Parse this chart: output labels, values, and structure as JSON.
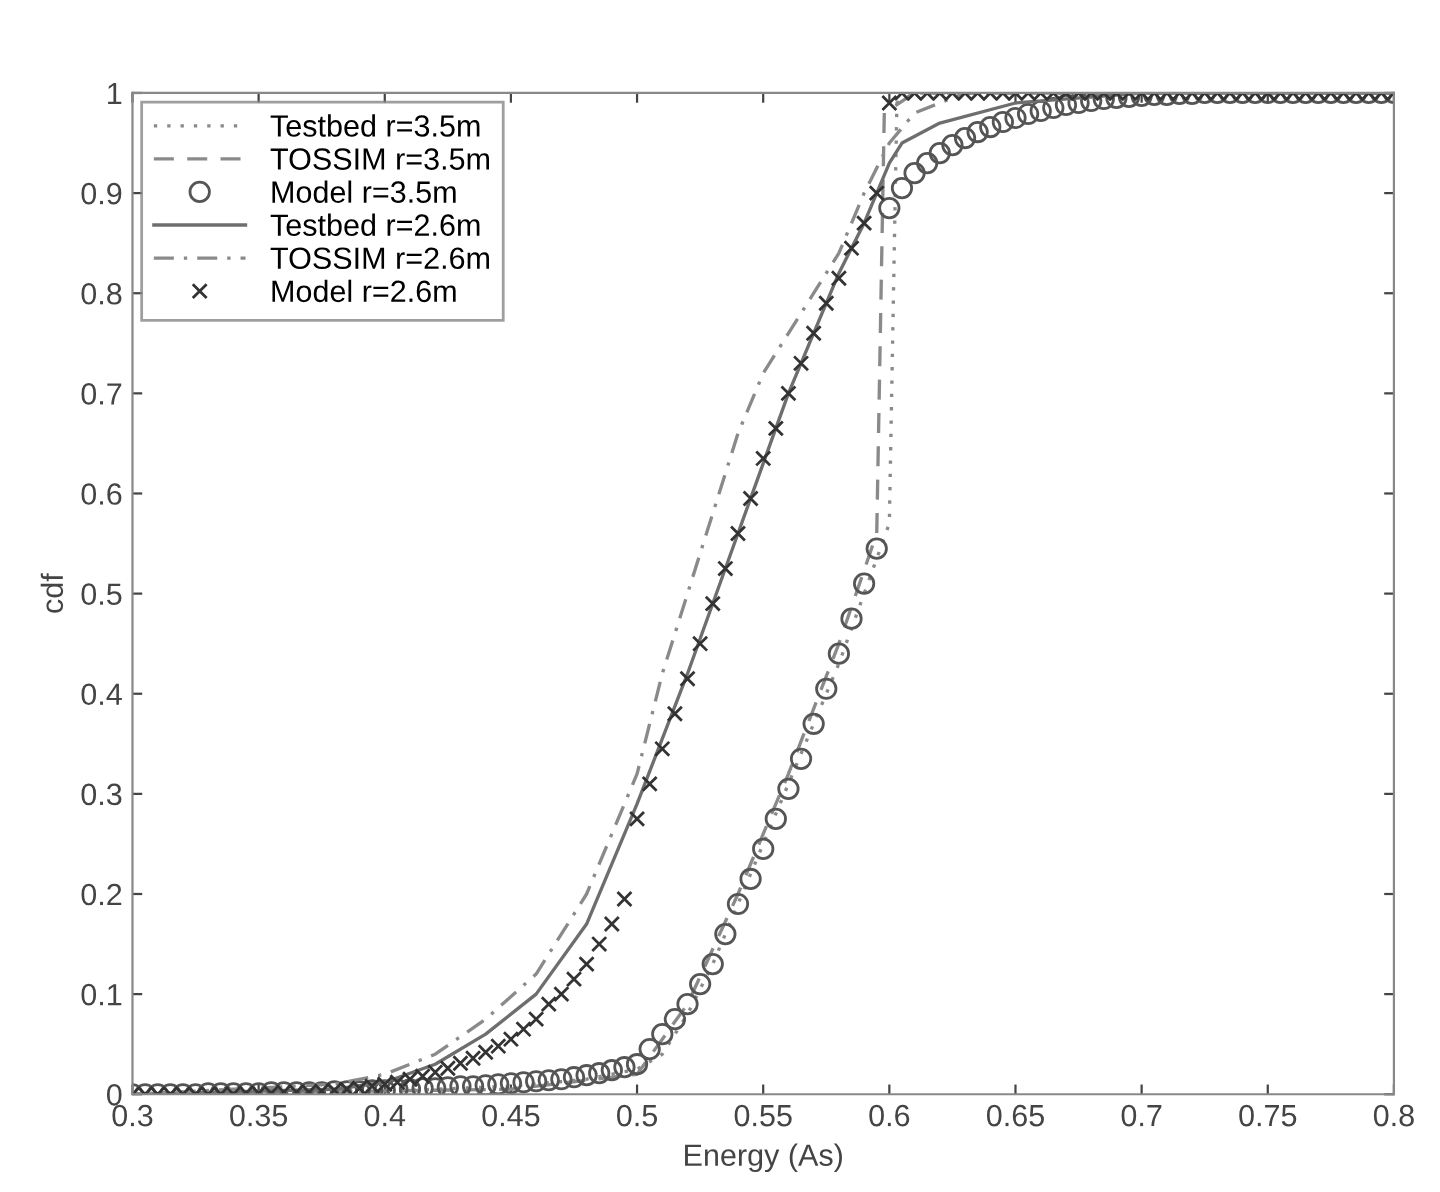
{
  "chart_data": {
    "type": "line",
    "xlabel": "Energy (As)",
    "ylabel": "cdf",
    "xlim": [
      0.3,
      0.8
    ],
    "ylim": [
      0,
      1
    ],
    "xticks": [
      0.3,
      0.35,
      0.4,
      0.45,
      0.5,
      0.55,
      0.6,
      0.65,
      0.7,
      0.75,
      0.8
    ],
    "yticks": [
      0,
      0.1,
      0.2,
      0.3,
      0.4,
      0.5,
      0.6,
      0.7,
      0.8,
      0.9,
      1
    ],
    "grid": false,
    "legend": "top left",
    "series": [
      {
        "name": "Testbed r=3.5m",
        "line_style": "dotted",
        "marker": "none",
        "color": "#8a8a8a",
        "x": [
          0.3,
          0.4,
          0.45,
          0.48,
          0.5,
          0.51,
          0.52,
          0.53,
          0.54,
          0.55,
          0.56,
          0.57,
          0.58,
          0.59,
          0.6,
          0.603,
          0.61,
          0.8
        ],
        "values": [
          0,
          0.003,
          0.008,
          0.015,
          0.025,
          0.04,
          0.08,
          0.13,
          0.19,
          0.25,
          0.31,
          0.37,
          0.43,
          0.5,
          0.57,
          0.99,
          1,
          1
        ]
      },
      {
        "name": "TOSSIM r=3.5m",
        "line_style": "dashed",
        "marker": "none",
        "color": "#8a8a8a",
        "x": [
          0.3,
          0.45,
          0.5,
          0.52,
          0.54,
          0.56,
          0.58,
          0.595,
          0.598,
          0.61,
          0.8
        ],
        "values": [
          0,
          0.005,
          0.02,
          0.09,
          0.2,
          0.32,
          0.45,
          0.56,
          0.98,
          1,
          1
        ]
      },
      {
        "name": "Model r=3.5m",
        "type": "scatter",
        "marker": "circle",
        "color": "#555555",
        "x": [
          0.3,
          0.305,
          0.31,
          0.315,
          0.32,
          0.325,
          0.33,
          0.335,
          0.34,
          0.345,
          0.35,
          0.355,
          0.36,
          0.365,
          0.37,
          0.375,
          0.38,
          0.385,
          0.39,
          0.395,
          0.4,
          0.405,
          0.41,
          0.415,
          0.42,
          0.425,
          0.43,
          0.435,
          0.44,
          0.445,
          0.45,
          0.455,
          0.46,
          0.465,
          0.47,
          0.475,
          0.48,
          0.485,
          0.49,
          0.495,
          0.5,
          0.505,
          0.51,
          0.515,
          0.52,
          0.525,
          0.53,
          0.535,
          0.54,
          0.545,
          0.55,
          0.555,
          0.56,
          0.565,
          0.57,
          0.575,
          0.58,
          0.585,
          0.59,
          0.595,
          0.6,
          0.605,
          0.61,
          0.615,
          0.62,
          0.625,
          0.63,
          0.635,
          0.64,
          0.645,
          0.65,
          0.655,
          0.66,
          0.665,
          0.67,
          0.675,
          0.68,
          0.685,
          0.69,
          0.695,
          0.7,
          0.705,
          0.71,
          0.715,
          0.72,
          0.725,
          0.73,
          0.735,
          0.74,
          0.745,
          0.75,
          0.755,
          0.76,
          0.765,
          0.77,
          0.775,
          0.78,
          0.785,
          0.79,
          0.795,
          0.8
        ],
        "values": [
          0,
          0,
          0,
          0,
          0,
          0,
          0.001,
          0.001,
          0.001,
          0.001,
          0.001,
          0.002,
          0.002,
          0.002,
          0.002,
          0.002,
          0.003,
          0.003,
          0.003,
          0.004,
          0.004,
          0.005,
          0.005,
          0.006,
          0.006,
          0.007,
          0.008,
          0.008,
          0.009,
          0.01,
          0.011,
          0.012,
          0.013,
          0.014,
          0.015,
          0.017,
          0.019,
          0.021,
          0.024,
          0.027,
          0.03,
          0.045,
          0.06,
          0.075,
          0.09,
          0.11,
          0.13,
          0.16,
          0.19,
          0.215,
          0.245,
          0.275,
          0.305,
          0.335,
          0.37,
          0.405,
          0.44,
          0.475,
          0.51,
          0.545,
          0.885,
          0.905,
          0.92,
          0.93,
          0.94,
          0.948,
          0.955,
          0.961,
          0.966,
          0.971,
          0.975,
          0.979,
          0.982,
          0.985,
          0.988,
          0.99,
          0.992,
          0.994,
          0.995,
          0.996,
          0.997,
          0.998,
          0.998,
          0.999,
          0.999,
          1,
          1,
          1,
          1,
          1,
          1,
          1,
          1,
          1,
          1,
          1,
          1,
          1,
          1,
          1,
          1
        ]
      },
      {
        "name": "Testbed r=2.6m",
        "line_style": "solid",
        "marker": "none",
        "color": "#6e6e6e",
        "x": [
          0.3,
          0.38,
          0.4,
          0.42,
          0.44,
          0.46,
          0.48,
          0.5,
          0.52,
          0.54,
          0.56,
          0.58,
          0.59,
          0.6,
          0.605,
          0.62,
          0.65,
          0.7,
          0.8
        ],
        "values": [
          0,
          0.005,
          0.012,
          0.03,
          0.06,
          0.1,
          0.17,
          0.29,
          0.42,
          0.56,
          0.7,
          0.82,
          0.87,
          0.93,
          0.95,
          0.97,
          0.99,
          1,
          1
        ]
      },
      {
        "name": "TOSSIM r=2.6m",
        "line_style": "dashdot",
        "marker": "none",
        "color": "#8a8a8a",
        "x": [
          0.3,
          0.38,
          0.4,
          0.42,
          0.44,
          0.46,
          0.48,
          0.5,
          0.51,
          0.52,
          0.53,
          0.54,
          0.55,
          0.56,
          0.57,
          0.58,
          0.59,
          0.6,
          0.61,
          0.63,
          0.8
        ],
        "values": [
          0,
          0.01,
          0.02,
          0.04,
          0.075,
          0.12,
          0.2,
          0.32,
          0.42,
          0.5,
          0.58,
          0.66,
          0.72,
          0.76,
          0.8,
          0.84,
          0.9,
          0.95,
          0.98,
          1,
          1
        ]
      },
      {
        "name": "Model r=2.6m",
        "type": "scatter",
        "marker": "cross",
        "color": "#333333",
        "x": [
          0.3,
          0.305,
          0.31,
          0.315,
          0.32,
          0.325,
          0.33,
          0.335,
          0.34,
          0.345,
          0.35,
          0.355,
          0.36,
          0.365,
          0.37,
          0.375,
          0.38,
          0.385,
          0.39,
          0.395,
          0.4,
          0.405,
          0.41,
          0.415,
          0.42,
          0.425,
          0.43,
          0.435,
          0.44,
          0.445,
          0.45,
          0.455,
          0.46,
          0.465,
          0.47,
          0.475,
          0.48,
          0.485,
          0.49,
          0.495,
          0.5,
          0.505,
          0.51,
          0.515,
          0.52,
          0.525,
          0.53,
          0.535,
          0.54,
          0.545,
          0.55,
          0.555,
          0.56,
          0.565,
          0.57,
          0.575,
          0.58,
          0.585,
          0.59,
          0.595,
          0.6,
          0.605,
          0.61,
          0.615,
          0.62,
          0.625,
          0.63,
          0.635,
          0.64,
          0.645,
          0.65,
          0.655,
          0.66,
          0.665,
          0.67,
          0.675,
          0.68,
          0.685,
          0.69,
          0.695,
          0.7,
          0.705,
          0.71,
          0.715,
          0.72,
          0.725,
          0.73,
          0.735,
          0.74,
          0.745,
          0.75,
          0.755,
          0.76,
          0.765,
          0.77,
          0.775,
          0.78,
          0.785,
          0.79,
          0.795,
          0.8
        ],
        "values": [
          0,
          0,
          0,
          0,
          0,
          0,
          0,
          0,
          0,
          0.001,
          0.001,
          0.001,
          0.002,
          0.002,
          0.002,
          0.003,
          0.004,
          0.005,
          0.006,
          0.008,
          0.01,
          0.012,
          0.015,
          0.018,
          0.022,
          0.026,
          0.031,
          0.036,
          0.042,
          0.048,
          0.055,
          0.065,
          0.075,
          0.09,
          0.1,
          0.115,
          0.13,
          0.15,
          0.17,
          0.195,
          0.275,
          0.31,
          0.345,
          0.38,
          0.415,
          0.45,
          0.49,
          0.525,
          0.56,
          0.595,
          0.635,
          0.665,
          0.7,
          0.73,
          0.76,
          0.79,
          0.815,
          0.845,
          0.87,
          0.9,
          0.99,
          1,
          1,
          1,
          1,
          1,
          1,
          1,
          1,
          1,
          1,
          1,
          1,
          1,
          1,
          1,
          1,
          1,
          1,
          1,
          1,
          1,
          1,
          1,
          1,
          1,
          1,
          1,
          1,
          1,
          1,
          1,
          1,
          1,
          1,
          1,
          1,
          1,
          1,
          1,
          1
        ]
      }
    ]
  }
}
